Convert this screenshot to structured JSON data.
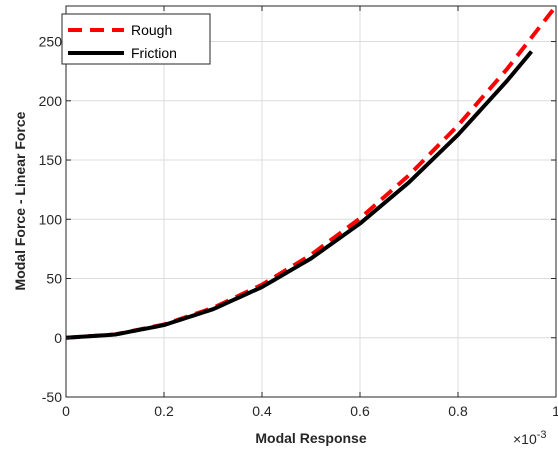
{
  "chart_data": {
    "type": "line",
    "xlabel": "Modal Response",
    "ylabel": "Modal Force - Linear Force",
    "x_multiplier_base": "×10",
    "x_multiplier_exp": "-3",
    "xlim": [
      0,
      1
    ],
    "ylim": [
      -50,
      280
    ],
    "xticks": [
      0,
      0.2,
      0.4,
      0.6,
      0.8,
      1
    ],
    "xtick_labels": [
      "0",
      "0.2",
      "0.4",
      "0.6",
      "0.8",
      "1"
    ],
    "yticks": [
      -50,
      0,
      50,
      100,
      150,
      200,
      250
    ],
    "ytick_labels": [
      "-50",
      "0",
      "50",
      "100",
      "150",
      "200",
      "250"
    ],
    "grid": true,
    "legend_position": "top-left",
    "series": [
      {
        "name": "Rough",
        "color": "#ff0000",
        "style": "dashed",
        "x": [
          0,
          0.1,
          0.2,
          0.3,
          0.4,
          0.5,
          0.6,
          0.7,
          0.8,
          0.9,
          1.0
        ],
        "y": [
          0,
          2.8,
          11.2,
          25.2,
          44.8,
          70,
          100.8,
          137.2,
          179.2,
          226.8,
          280
        ]
      },
      {
        "name": "Friction",
        "color": "#000000",
        "style": "solid",
        "x": [
          0,
          0.1,
          0.2,
          0.3,
          0.4,
          0.5,
          0.6,
          0.7,
          0.8,
          0.9,
          0.95
        ],
        "y": [
          0,
          2.7,
          10.7,
          24.1,
          42.8,
          66.9,
          96.4,
          131.2,
          171.3,
          216.8,
          241.6
        ]
      }
    ]
  }
}
